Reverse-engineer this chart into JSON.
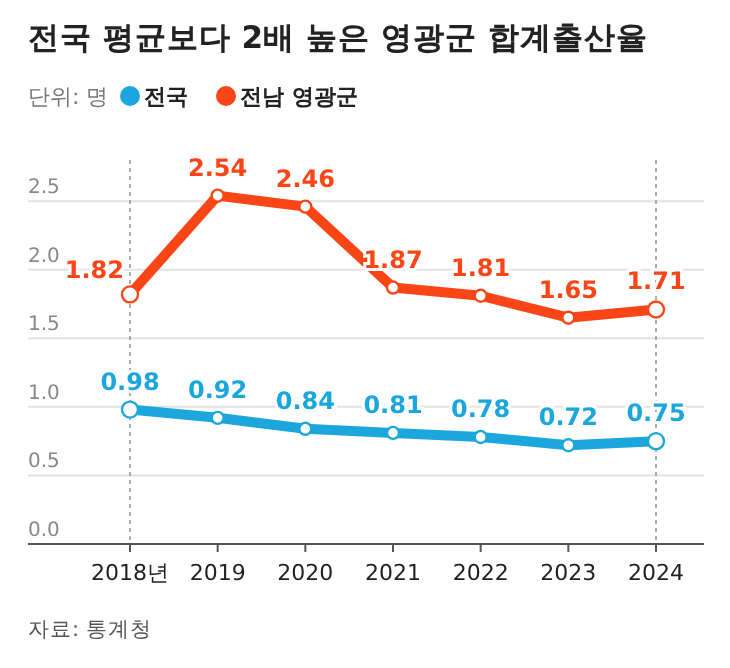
{
  "chart_data": {
    "type": "line",
    "title": "전국 평균보다 2배 높은 영광군 합계출산율",
    "subtitle": "단위: 명",
    "categories": [
      "2018년",
      "2019",
      "2020",
      "2021",
      "2022",
      "2023",
      "2024"
    ],
    "series": [
      {
        "name": "전국",
        "color": "#1ba7dc",
        "values": [
          0.98,
          0.92,
          0.84,
          0.81,
          0.78,
          0.72,
          0.75
        ]
      },
      {
        "name": "전남 영광군",
        "color": "#fa4616",
        "values": [
          1.82,
          2.54,
          2.46,
          1.87,
          1.81,
          1.65,
          1.71
        ]
      }
    ],
    "ylim": [
      0,
      2.8
    ],
    "yticks": [
      {
        "value": 0,
        "label": "0.0"
      },
      {
        "value": 0.5,
        "label": "0.5"
      },
      {
        "value": 1,
        "label": "1.0"
      },
      {
        "value": 1.5,
        "label": "1.5"
      },
      {
        "value": 2,
        "label": "2.0"
      },
      {
        "value": 2.5,
        "label": "2.5"
      }
    ],
    "grid": "y",
    "legend": "top left",
    "data_labels": true,
    "marker": "circle",
    "line_style": "solid",
    "ref_lines": [
      {
        "axis": "x",
        "value": "2018년",
        "color": "#999999",
        "line_style": "dotted"
      },
      {
        "axis": "x",
        "value": "2024",
        "color": "#999999",
        "line_style": "dotted"
      }
    ],
    "annotations": [
      "자료: 통계청"
    ]
  }
}
